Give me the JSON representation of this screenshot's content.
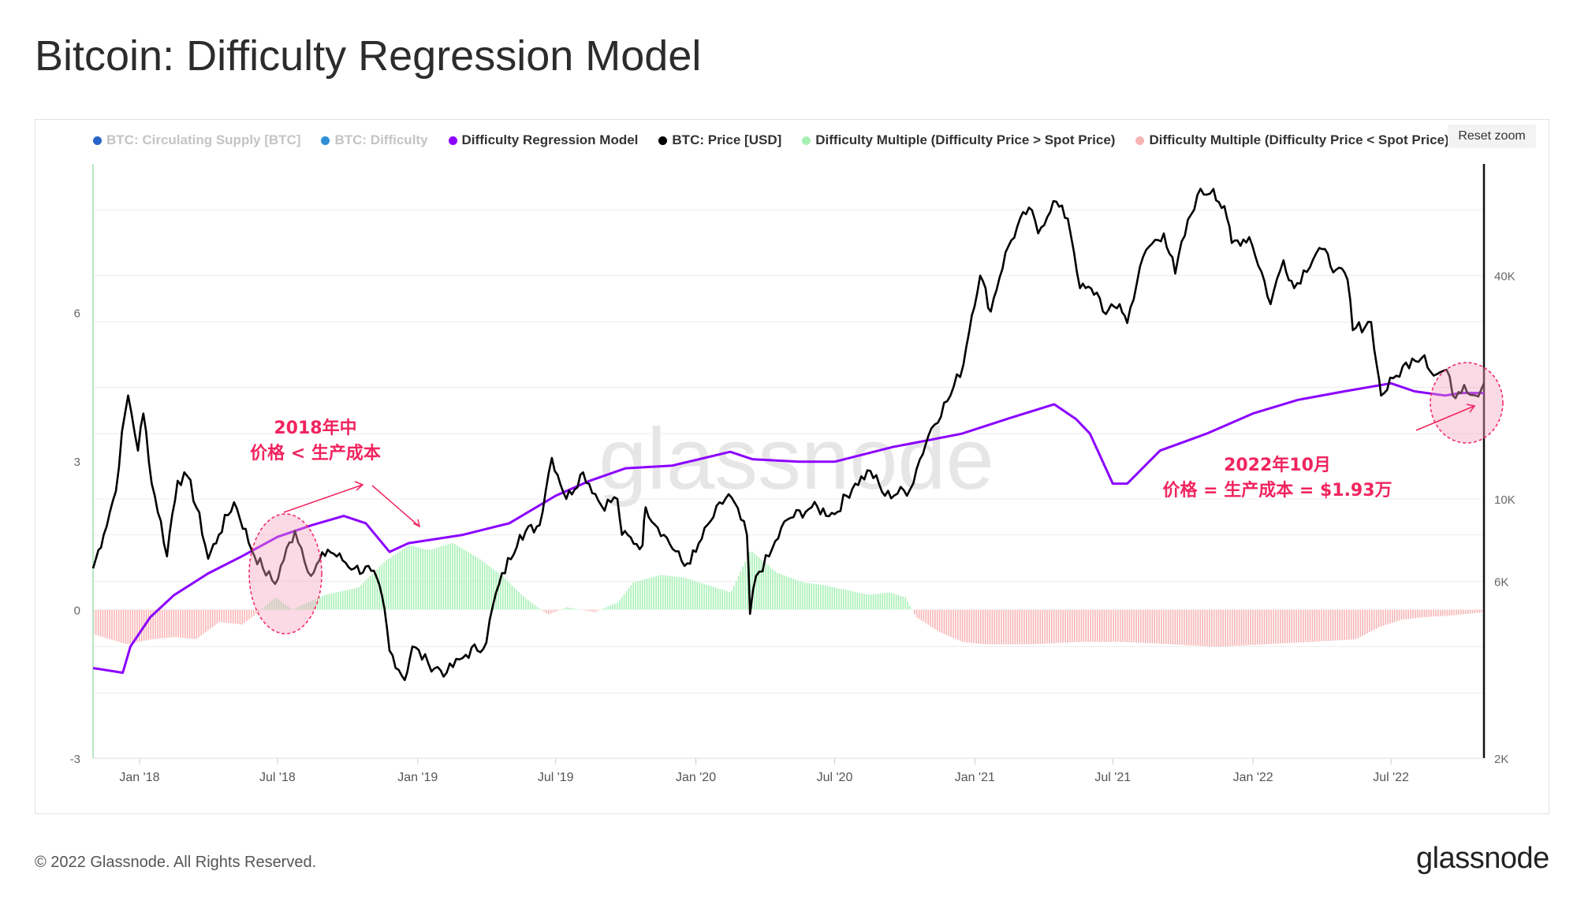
{
  "title": "Bitcoin: Difficulty Regression Model",
  "reset_zoom": "Reset zoom",
  "legend": [
    {
      "label": "BTC: Circulating Supply [BTC]",
      "color": "#2a64c8",
      "active": false
    },
    {
      "label": "BTC: Difficulty",
      "color": "#2f8fd8",
      "active": false
    },
    {
      "label": "Difficulty Regression Model",
      "color": "#8b00ff",
      "active": true
    },
    {
      "label": "BTC: Price [USD]",
      "color": "#000000",
      "active": true
    },
    {
      "label": "Difficulty Multiple (Difficulty Price > Spot Price)",
      "color": "#a6f0b4",
      "active": true
    },
    {
      "label": "Difficulty Multiple (Difficulty Price < Spot Price)",
      "color": "#f7b4b4",
      "active": true
    }
  ],
  "footer": "© 2022 Glassnode. All Rights Reserved.",
  "brand": "glassnode",
  "watermark": "glassnode",
  "annotations": {
    "left_line1": "2018年中",
    "left_line2": "价格 < 生产成本",
    "right_line1": "2022年10月",
    "right_line2": "价格 = 生产成本 = $1.93万"
  },
  "chart_data": {
    "type": "line",
    "x_ticks": [
      "Jan '18",
      "Jul '18",
      "Jan '19",
      "Jul '19",
      "Jan '20",
      "Jul '20",
      "Jan '21",
      "Jul '21",
      "Jan '22",
      "Jul '22"
    ],
    "left_axis": {
      "ticks": [
        "-3",
        "0",
        "3",
        "6"
      ],
      "range": [
        -3,
        9
      ]
    },
    "right_axis": {
      "ticks": [
        "2K",
        "6K",
        "10K",
        "40K"
      ],
      "scale": "log",
      "range": [
        2000,
        80000
      ]
    },
    "colors": {
      "model": "#8b00ff",
      "price": "#000000",
      "positive": "#a6f0b4",
      "negative": "#f7b4b4"
    },
    "series": [
      {
        "name": "BTC: Price [USD]",
        "axis": "right",
        "points": [
          [
            "2017-11-01",
            6500
          ],
          [
            "2017-11-15",
            8000
          ],
          [
            "2017-12-01",
            10500
          ],
          [
            "2017-12-17",
            19000
          ],
          [
            "2017-12-30",
            13500
          ],
          [
            "2018-01-06",
            17000
          ],
          [
            "2018-01-17",
            11000
          ],
          [
            "2018-02-06",
            7000
          ],
          [
            "2018-02-20",
            11200
          ],
          [
            "2018-03-05",
            11500
          ],
          [
            "2018-04-01",
            6900
          ],
          [
            "2018-04-15",
            8000
          ],
          [
            "2018-05-05",
            9800
          ],
          [
            "2018-05-28",
            7300
          ],
          [
            "2018-06-12",
            6500
          ],
          [
            "2018-06-28",
            5900
          ],
          [
            "2018-07-24",
            8200
          ],
          [
            "2018-08-14",
            6200
          ],
          [
            "2018-09-05",
            7300
          ],
          [
            "2018-10-10",
            6500
          ],
          [
            "2018-11-01",
            6400
          ],
          [
            "2018-11-15",
            5500
          ],
          [
            "2018-11-25",
            3900
          ],
          [
            "2018-12-15",
            3250
          ],
          [
            "2018-12-25",
            4000
          ],
          [
            "2019-01-15",
            3600
          ],
          [
            "2019-02-08",
            3400
          ],
          [
            "2019-03-05",
            3800
          ],
          [
            "2019-04-01",
            4100
          ],
          [
            "2019-04-10",
            5200
          ],
          [
            "2019-05-15",
            8000
          ],
          [
            "2019-06-10",
            8500
          ],
          [
            "2019-06-26",
            12900
          ],
          [
            "2019-07-15",
            10000
          ],
          [
            "2019-08-06",
            11800
          ],
          [
            "2019-08-30",
            9600
          ],
          [
            "2019-09-20",
            10000
          ],
          [
            "2019-09-26",
            8000
          ],
          [
            "2019-10-23",
            7500
          ],
          [
            "2019-10-27",
            9500
          ],
          [
            "2019-11-20",
            8000
          ],
          [
            "2019-12-17",
            6600
          ],
          [
            "2020-01-01",
            7200
          ],
          [
            "2020-01-20",
            8700
          ],
          [
            "2020-02-13",
            10300
          ],
          [
            "2020-03-08",
            8000
          ],
          [
            "2020-03-12",
            4900
          ],
          [
            "2020-03-20",
            6200
          ],
          [
            "2020-04-06",
            7000
          ],
          [
            "2020-04-30",
            8800
          ],
          [
            "2020-06-01",
            9500
          ],
          [
            "2020-07-01",
            9100
          ],
          [
            "2020-07-28",
            11000
          ],
          [
            "2020-08-17",
            11900
          ],
          [
            "2020-09-05",
            10200
          ],
          [
            "2020-10-08",
            10600
          ],
          [
            "2020-10-21",
            12800
          ],
          [
            "2020-11-05",
            15500
          ],
          [
            "2020-11-30",
            19000
          ],
          [
            "2020-12-17",
            23000
          ],
          [
            "2021-01-08",
            40000
          ],
          [
            "2021-01-22",
            32000
          ],
          [
            "2021-02-14",
            48000
          ],
          [
            "2021-03-13",
            61000
          ],
          [
            "2021-03-25",
            52000
          ],
          [
            "2021-04-14",
            63500
          ],
          [
            "2021-05-03",
            57000
          ],
          [
            "2021-05-19",
            37000
          ],
          [
            "2021-06-10",
            36000
          ],
          [
            "2021-06-22",
            31500
          ],
          [
            "2021-07-10",
            33500
          ],
          [
            "2021-07-20",
            29800
          ],
          [
            "2021-08-14",
            47000
          ],
          [
            "2021-09-06",
            52000
          ],
          [
            "2021-09-21",
            40500
          ],
          [
            "2021-10-20",
            66000
          ],
          [
            "2021-11-10",
            68500
          ],
          [
            "2021-11-28",
            57000
          ],
          [
            "2021-12-04",
            49000
          ],
          [
            "2021-12-27",
            50800
          ],
          [
            "2022-01-24",
            33500
          ],
          [
            "2022-02-10",
            44000
          ],
          [
            "2022-02-24",
            37000
          ],
          [
            "2022-03-29",
            47500
          ],
          [
            "2022-04-20",
            41500
          ],
          [
            "2022-05-05",
            39000
          ],
          [
            "2022-05-12",
            28500
          ],
          [
            "2022-06-05",
            30000
          ],
          [
            "2022-06-13",
            22500
          ],
          [
            "2022-06-18",
            19000
          ],
          [
            "2022-07-08",
            21500
          ],
          [
            "2022-07-29",
            23900
          ],
          [
            "2022-08-14",
            24400
          ],
          [
            "2022-08-26",
            21500
          ],
          [
            "2022-09-12",
            22300
          ],
          [
            "2022-09-20",
            19000
          ],
          [
            "2022-10-05",
            20300
          ],
          [
            "2022-10-20",
            19000
          ],
          [
            "2022-10-31",
            20500
          ]
        ]
      },
      {
        "name": "Difficulty Regression Model",
        "axis": "right",
        "points": [
          [
            "2017-11-01",
            3500
          ],
          [
            "2017-12-10",
            3400
          ],
          [
            "2017-12-20",
            4000
          ],
          [
            "2018-01-15",
            4800
          ],
          [
            "2018-02-15",
            5500
          ],
          [
            "2018-04-01",
            6300
          ],
          [
            "2018-05-15",
            7000
          ],
          [
            "2018-07-01",
            7900
          ],
          [
            "2018-08-15",
            8500
          ],
          [
            "2018-09-26",
            9000
          ],
          [
            "2018-10-25",
            8600
          ],
          [
            "2018-11-25",
            7200
          ],
          [
            "2018-12-20",
            7600
          ],
          [
            "2019-03-01",
            8000
          ],
          [
            "2019-05-01",
            8600
          ],
          [
            "2019-07-01",
            10200
          ],
          [
            "2019-08-15",
            11200
          ],
          [
            "2019-10-01",
            12100
          ],
          [
            "2019-12-01",
            12300
          ],
          [
            "2020-02-15",
            13400
          ],
          [
            "2020-03-15",
            12800
          ],
          [
            "2020-05-15",
            12600
          ],
          [
            "2020-07-01",
            12600
          ],
          [
            "2020-09-15",
            13800
          ],
          [
            "2020-11-01",
            14400
          ],
          [
            "2020-12-15",
            15000
          ],
          [
            "2021-02-15",
            16500
          ],
          [
            "2021-04-15",
            18000
          ],
          [
            "2021-05-14",
            16400
          ],
          [
            "2021-06-01",
            15000
          ],
          [
            "2021-07-01",
            11000
          ],
          [
            "2021-07-20",
            11000
          ],
          [
            "2021-09-01",
            13500
          ],
          [
            "2021-11-01",
            15000
          ],
          [
            "2022-01-01",
            17000
          ],
          [
            "2022-03-01",
            18500
          ],
          [
            "2022-05-01",
            19500
          ],
          [
            "2022-07-01",
            20500
          ],
          [
            "2022-08-01",
            19500
          ],
          [
            "2022-09-10",
            19000
          ],
          [
            "2022-10-01",
            19300
          ],
          [
            "2022-10-31",
            19300
          ]
        ]
      },
      {
        "name": "Difficulty Multiple",
        "axis": "left",
        "points": [
          [
            "2017-11-01",
            -0.5
          ],
          [
            "2017-12-15",
            -0.7
          ],
          [
            "2018-01-15",
            -0.6
          ],
          [
            "2018-02-15",
            -0.55
          ],
          [
            "2018-03-15",
            -0.6
          ],
          [
            "2018-04-15",
            -0.25
          ],
          [
            "2018-05-15",
            -0.3
          ],
          [
            "2018-06-05",
            -0.05
          ],
          [
            "2018-06-28",
            0.25
          ],
          [
            "2018-07-20",
            0.0
          ],
          [
            "2018-08-10",
            0.15
          ],
          [
            "2018-09-01",
            0.3
          ],
          [
            "2018-10-15",
            0.45
          ],
          [
            "2018-11-20",
            1.0
          ],
          [
            "2018-12-20",
            1.3
          ],
          [
            "2019-01-15",
            1.2
          ],
          [
            "2019-02-15",
            1.35
          ],
          [
            "2019-03-20",
            1.05
          ],
          [
            "2019-04-20",
            0.7
          ],
          [
            "2019-05-20",
            0.25
          ],
          [
            "2019-06-20",
            -0.1
          ],
          [
            "2019-07-15",
            0.05
          ],
          [
            "2019-08-20",
            -0.05
          ],
          [
            "2019-09-20",
            0.15
          ],
          [
            "2019-10-10",
            0.55
          ],
          [
            "2019-11-15",
            0.7
          ],
          [
            "2019-12-15",
            0.65
          ],
          [
            "2020-01-15",
            0.5
          ],
          [
            "2020-02-15",
            0.35
          ],
          [
            "2020-03-12",
            1.2
          ],
          [
            "2020-04-15",
            0.75
          ],
          [
            "2020-05-20",
            0.55
          ],
          [
            "2020-06-15",
            0.5
          ],
          [
            "2020-07-15",
            0.4
          ],
          [
            "2020-08-15",
            0.3
          ],
          [
            "2020-09-10",
            0.35
          ],
          [
            "2020-10-01",
            0.25
          ],
          [
            "2020-10-15",
            -0.15
          ],
          [
            "2020-11-15",
            -0.45
          ],
          [
            "2020-12-15",
            -0.65
          ],
          [
            "2021-01-15",
            -0.7
          ],
          [
            "2021-03-15",
            -0.7
          ],
          [
            "2021-05-15",
            -0.65
          ],
          [
            "2021-07-15",
            -0.65
          ],
          [
            "2021-09-15",
            -0.7
          ],
          [
            "2021-11-15",
            -0.75
          ],
          [
            "2022-01-15",
            -0.7
          ],
          [
            "2022-03-15",
            -0.65
          ],
          [
            "2022-05-15",
            -0.6
          ],
          [
            "2022-06-15",
            -0.35
          ],
          [
            "2022-07-15",
            -0.2
          ],
          [
            "2022-08-15",
            -0.15
          ],
          [
            "2022-09-15",
            -0.12
          ],
          [
            "2022-10-31",
            -0.05
          ]
        ]
      }
    ]
  }
}
